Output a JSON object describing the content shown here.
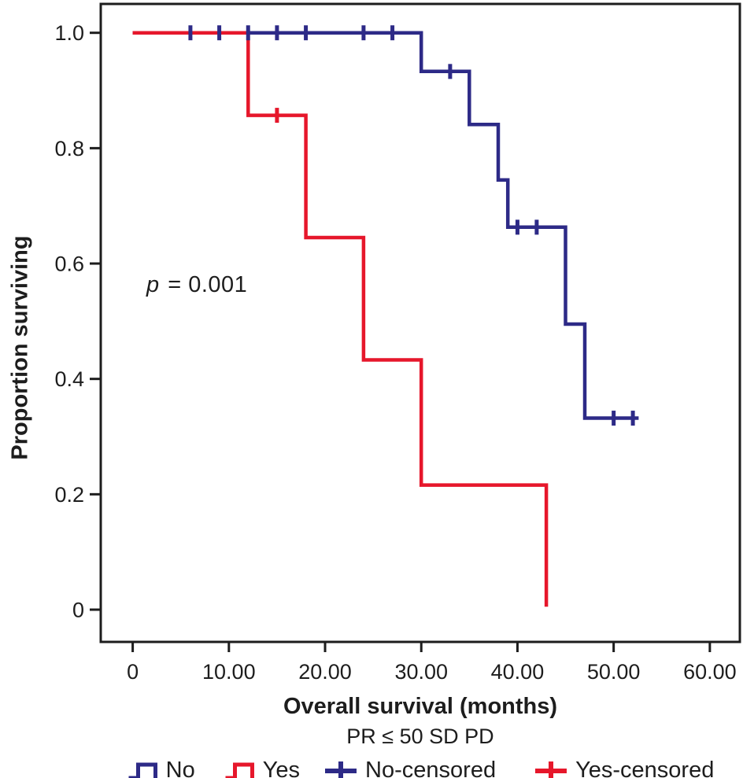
{
  "chart_data": {
    "type": "line",
    "subtype": "kaplan-meier-step",
    "xlabel": "Overall survival (months)",
    "ylabel": "Proportion surviving",
    "xlim": [
      0,
      63
    ],
    "ylim": [
      0,
      1.05
    ],
    "grid": false,
    "annotation": {
      "italic": "p",
      "text": " = 0.001"
    },
    "x_ticks": [
      {
        "v": 0,
        "label": "0"
      },
      {
        "v": 10,
        "label": "10.00"
      },
      {
        "v": 20,
        "label": "20.00"
      },
      {
        "v": 30,
        "label": "30.00"
      },
      {
        "v": 40,
        "label": "40.00"
      },
      {
        "v": 50,
        "label": "50.00"
      },
      {
        "v": 60,
        "label": "60.00"
      }
    ],
    "y_ticks": [
      {
        "v": 0,
        "label": "0"
      },
      {
        "v": 0.2,
        "label": "0.2"
      },
      {
        "v": 0.4,
        "label": "0.4"
      },
      {
        "v": 0.6,
        "label": "0.6"
      },
      {
        "v": 0.8,
        "label": "0.8"
      },
      {
        "v": 1.0,
        "label": "1.0"
      }
    ],
    "series": [
      {
        "id": "no",
        "name": "No",
        "color": "#2D2A87",
        "x_start": 0,
        "y_start": 1.0,
        "steps": [
          [
            30,
            0.933
          ],
          [
            35,
            0.841
          ],
          [
            38,
            0.745
          ],
          [
            39,
            0.663
          ],
          [
            45,
            0.495
          ],
          [
            47,
            0.332
          ]
        ],
        "end_month": 52.6,
        "censored": [
          [
            6,
            1.0
          ],
          [
            9,
            1.0
          ],
          [
            12,
            1.0
          ],
          [
            15,
            1.0
          ],
          [
            18,
            1.0
          ],
          [
            24,
            1.0
          ],
          [
            27,
            1.0
          ],
          [
            33,
            0.933
          ],
          [
            40,
            0.663
          ],
          [
            42,
            0.663
          ],
          [
            50,
            0.332
          ],
          [
            52,
            0.332
          ]
        ]
      },
      {
        "id": "yes",
        "name": "Yes",
        "color": "#E6172B",
        "x_start": 0,
        "y_start": 1.0,
        "steps": [
          [
            12,
            0.857
          ],
          [
            18,
            0.645
          ],
          [
            24,
            0.433
          ],
          [
            30,
            0.216
          ],
          [
            43,
            0.005
          ]
        ],
        "end_month": 43,
        "censored": [
          [
            15,
            0.857
          ]
        ]
      }
    ],
    "legend": {
      "title": "PR ≤ 50 SD PD",
      "position": "bottom",
      "entries": [
        {
          "label": "No",
          "glyph": "step-line",
          "color": "#2D2A87"
        },
        {
          "label": "Yes",
          "glyph": "step-line",
          "color": "#E6172B"
        },
        {
          "label": "No-censored",
          "glyph": "plus",
          "color": "#2D2A87"
        },
        {
          "label": "Yes-censored",
          "glyph": "plus",
          "color": "#E6172B"
        }
      ]
    }
  }
}
